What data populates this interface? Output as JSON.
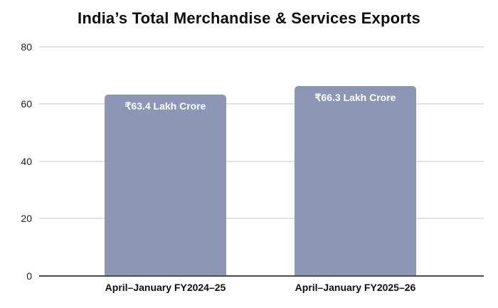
{
  "title": "India’s Total Merchandise & Services Exports",
  "chart_data": {
    "type": "bar",
    "title": "India’s Total Merchandise & Services Exports",
    "categories": [
      "April–January FY2024–25",
      "April–January FY2025–26"
    ],
    "values": [
      63.4,
      66.3
    ],
    "bar_value_labels": [
      "₹63.4 Lakh Crore",
      "₹66.3 Lakh Crore"
    ],
    "xlabel": "",
    "ylabel": "",
    "ylim": [
      0,
      80
    ],
    "yticks": [
      0,
      20,
      40,
      60,
      80
    ],
    "grid": true,
    "legend": false,
    "colors": {
      "bar": "#8d96b4",
      "bar_label_text": "#ffffff",
      "gridline": "#e3e3e3",
      "baseline": "#4a4a4a",
      "text": "#0d0d0d"
    }
  }
}
